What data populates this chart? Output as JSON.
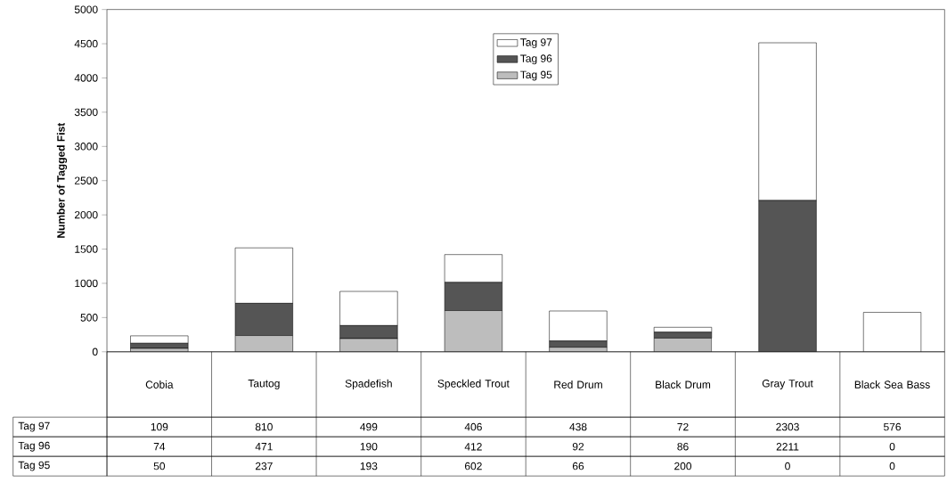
{
  "chart_data": {
    "type": "bar",
    "stacked": true,
    "ylabel": "Number of Tagged Fist",
    "categories": [
      "Cobia",
      "Tautog",
      "Spadefish",
      "Speckled Trout",
      "Red Drum",
      "Black Drum",
      "Gray Trout",
      "Black Sea Bass"
    ],
    "series": [
      {
        "name": "Tag 95",
        "color": "#bdbdbd",
        "values": [
          50,
          237,
          193,
          602,
          66,
          200,
          0,
          0
        ]
      },
      {
        "name": "Tag 96",
        "color": "#555555",
        "values": [
          74,
          471,
          190,
          412,
          92,
          86,
          2211,
          0
        ]
      },
      {
        "name": "Tag 97",
        "color": "#ffffff",
        "values": [
          109,
          810,
          499,
          406,
          438,
          72,
          2303,
          576
        ]
      }
    ],
    "ylim": [
      0,
      5000
    ],
    "yticks": [
      0,
      500,
      1000,
      1500,
      2000,
      2500,
      3000,
      3500,
      4000,
      4500,
      5000
    ],
    "legend": "top",
    "data_labels": true,
    "grid": false
  }
}
